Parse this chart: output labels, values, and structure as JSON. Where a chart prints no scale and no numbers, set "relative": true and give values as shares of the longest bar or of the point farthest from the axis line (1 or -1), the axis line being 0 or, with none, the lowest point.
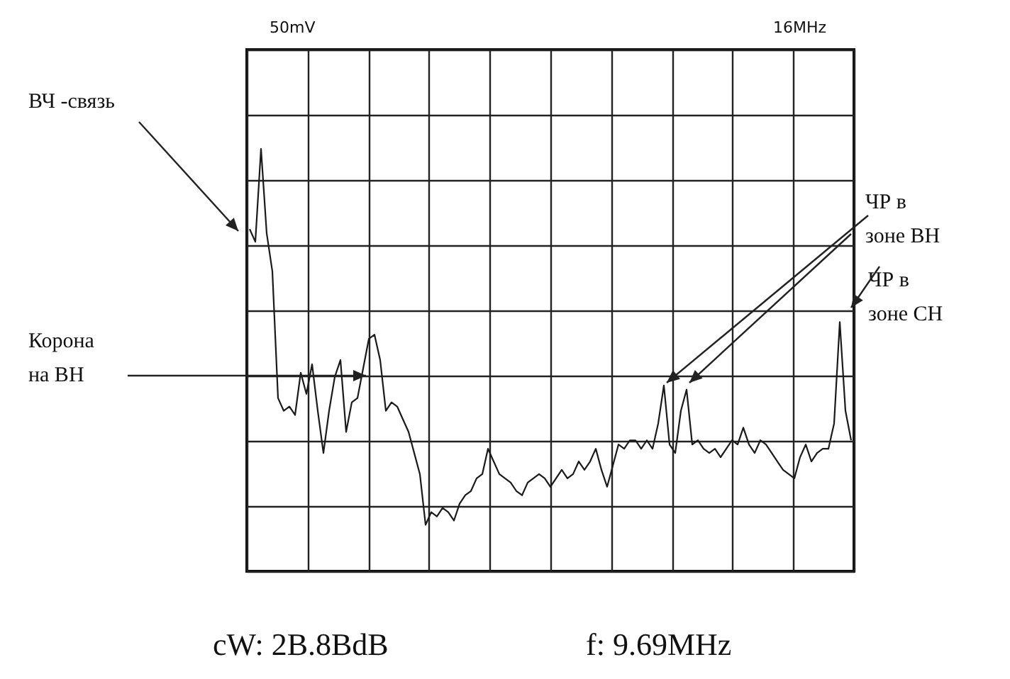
{
  "chart_data": {
    "type": "line",
    "relative": true,
    "grid": true,
    "color": "#1a1a1a",
    "categories": [
      null,
      null,
      null,
      null,
      null,
      null,
      null,
      null,
      null,
      null,
      null,
      null,
      null,
      null,
      null,
      null,
      null,
      null,
      null,
      null,
      null,
      null,
      null,
      null,
      null,
      null,
      null,
      null,
      null,
      null,
      null,
      null,
      null,
      null,
      null,
      null,
      null,
      null,
      null,
      null,
      null,
      null,
      null,
      null,
      null,
      null,
      null,
      null,
      null,
      null,
      null,
      null,
      null,
      null,
      null,
      null,
      null,
      null,
      null,
      null,
      null,
      null,
      null,
      null,
      null,
      null,
      null,
      null,
      null,
      null,
      null,
      null,
      null,
      null,
      null,
      null,
      null,
      null,
      null,
      null,
      null,
      null,
      null,
      null,
      null,
      null,
      null,
      null,
      null,
      null,
      null,
      null,
      null,
      null,
      null,
      null,
      null,
      null,
      null,
      null,
      null,
      null,
      null,
      null,
      null,
      null,
      null
    ],
    "values": [
      0.81,
      0.78,
      1.0,
      0.8,
      0.71,
      0.41,
      0.38,
      0.39,
      0.37,
      0.47,
      0.42,
      0.49,
      0.38,
      0.28,
      0.38,
      0.46,
      0.5,
      0.33,
      0.4,
      0.41,
      0.48,
      0.55,
      0.56,
      0.5,
      0.38,
      0.4,
      0.39,
      0.36,
      0.33,
      0.28,
      0.23,
      0.11,
      0.14,
      0.13,
      0.15,
      0.14,
      0.12,
      0.16,
      0.18,
      0.19,
      0.22,
      0.23,
      0.29,
      0.26,
      0.23,
      0.22,
      0.21,
      0.19,
      0.18,
      0.21,
      0.22,
      0.23,
      0.22,
      0.2,
      0.22,
      0.24,
      0.22,
      0.23,
      0.26,
      0.24,
      0.26,
      0.29,
      0.24,
      0.2,
      0.25,
      0.3,
      0.29,
      0.31,
      0.31,
      0.29,
      0.31,
      0.29,
      0.35,
      0.44,
      0.3,
      0.28,
      0.38,
      0.43,
      0.3,
      0.31,
      0.29,
      0.28,
      0.29,
      0.27,
      0.29,
      0.31,
      0.3,
      0.34,
      0.3,
      0.28,
      0.31,
      0.3,
      0.28,
      0.26,
      0.24,
      0.23,
      0.22,
      0.27,
      0.3,
      0.26,
      0.28,
      0.29,
      0.29,
      0.35,
      0.59,
      0.38,
      0.31
    ],
    "annotations": [
      "50mV",
      "16MHz",
      "ВЧ -связь",
      "Корона\nна ВН",
      "ЧР в\nзоне ВН",
      "ЧР в\nзоне СН",
      "cW: 2B.8BdB",
      "f: 9.69MHz"
    ]
  }
}
